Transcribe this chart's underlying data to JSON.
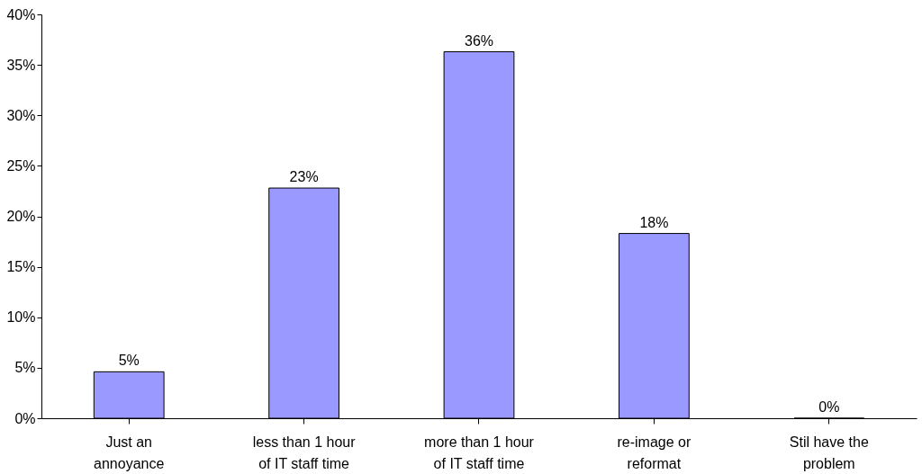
{
  "chart_data": {
    "type": "bar",
    "categories": [
      "Just an\nannoyance",
      "less than 1 hour\nof IT staff time",
      "more than 1 hour\nof IT staff time",
      "re-image or\nreformat",
      "Stil have the\nproblem"
    ],
    "values": [
      4.6,
      22.8,
      36.3,
      18.3,
      0
    ],
    "value_labels": [
      "5%",
      "23%",
      "36%",
      "18%",
      "0%"
    ],
    "color": "#9999ff",
    "ylim": [
      0,
      40
    ],
    "yticks": [
      {
        "value": 0,
        "label": "0%"
      },
      {
        "value": 5,
        "label": "5%"
      },
      {
        "value": 10,
        "label": "10%"
      },
      {
        "value": 15,
        "label": "15%"
      },
      {
        "value": 20,
        "label": "20%"
      },
      {
        "value": 25,
        "label": "25%"
      },
      {
        "value": 30,
        "label": "30%"
      },
      {
        "value": 35,
        "label": "35%"
      },
      {
        "value": 40,
        "label": "40%"
      }
    ],
    "grid": false
  }
}
